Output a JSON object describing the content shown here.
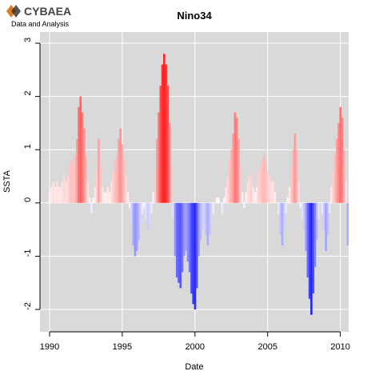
{
  "logo": {
    "name": "CYBAEA",
    "tagline": "Data and Analysis"
  },
  "chart_data": {
    "type": "bar",
    "title": "Nino34",
    "x_label": "Date",
    "y_label": "SSTA",
    "x": [
      1990,
      1990.125,
      1990.25,
      1990.375,
      1990.5,
      1990.625,
      1990.75,
      1990.875,
      1991,
      1991.125,
      1991.25,
      1991.375,
      1991.5,
      1991.625,
      1991.75,
      1991.875,
      1992,
      1992.125,
      1992.25,
      1992.375,
      1992.5,
      1992.625,
      1992.75,
      1992.875,
      1993,
      1993.125,
      1993.25,
      1993.375,
      1993.5,
      1993.625,
      1993.75,
      1993.875,
      1994,
      1994.125,
      1994.25,
      1994.375,
      1994.5,
      1994.625,
      1994.75,
      1994.875,
      1995,
      1995.125,
      1995.25,
      1995.375,
      1995.5,
      1995.625,
      1995.75,
      1995.875,
      1996,
      1996.125,
      1996.25,
      1996.375,
      1996.5,
      1996.625,
      1996.75,
      1996.875,
      1997,
      1997.125,
      1997.25,
      1997.375,
      1997.5,
      1997.625,
      1997.75,
      1997.875,
      1998,
      1998.125,
      1998.25,
      1998.375,
      1998.5,
      1998.625,
      1998.75,
      1998.875,
      1999,
      1999.125,
      1999.25,
      1999.375,
      1999.5,
      1999.625,
      1999.75,
      1999.875,
      2000,
      2000.125,
      2000.25,
      2000.375,
      2000.5,
      2000.625,
      2000.75,
      2000.875,
      2001,
      2001.125,
      2001.25,
      2001.375,
      2001.5,
      2001.625,
      2001.75,
      2001.875,
      2002,
      2002.125,
      2002.25,
      2002.375,
      2002.5,
      2002.625,
      2002.75,
      2002.875,
      2003,
      2003.125,
      2003.25,
      2003.375,
      2003.5,
      2003.625,
      2003.75,
      2003.875,
      2004,
      2004.125,
      2004.25,
      2004.375,
      2004.5,
      2004.625,
      2004.75,
      2004.875,
      2005,
      2005.125,
      2005.25,
      2005.375,
      2005.5,
      2005.625,
      2005.75,
      2005.875,
      2006,
      2006.125,
      2006.25,
      2006.375,
      2006.5,
      2006.625,
      2006.75,
      2006.875,
      2007,
      2007.125,
      2007.25,
      2007.375,
      2007.5,
      2007.625,
      2007.75,
      2007.875,
      2008,
      2008.125,
      2008.25,
      2008.375,
      2008.5,
      2008.625,
      2008.75,
      2008.875,
      2009,
      2009.125,
      2009.25,
      2009.375,
      2009.5,
      2009.625,
      2009.75,
      2009.875,
      2010,
      2010.125,
      2010.25,
      2010.375,
      2010.5
    ],
    "values": [
      0.2,
      0.3,
      0.4,
      0.3,
      0.4,
      0.3,
      0.3,
      0.4,
      0.5,
      0.4,
      0.5,
      0.7,
      0.8,
      0.7,
      0.9,
      1.2,
      1.8,
      2.0,
      1.7,
      1.4,
      0.9,
      0.4,
      0.1,
      -0.2,
      0.1,
      0.3,
      0.6,
      1.2,
      0.7,
      0.3,
      0.2,
      0.2,
      0.3,
      0.2,
      0.4,
      0.6,
      0.8,
      0.9,
      1.2,
      1.4,
      1.1,
      0.8,
      0.5,
      0.2,
      -0.1,
      -0.4,
      -0.8,
      -1.0,
      -0.9,
      -0.7,
      -0.4,
      -0.2,
      -0.1,
      -0.3,
      -0.5,
      -0.4,
      -0.2,
      0.2,
      0.6,
      1.2,
      1.7,
      2.2,
      2.6,
      2.8,
      2.6,
      2.2,
      1.5,
      0.7,
      -0.3,
      -1.0,
      -1.4,
      -1.5,
      -1.6,
      -1.3,
      -1.0,
      -0.9,
      -1.1,
      -1.3,
      -1.7,
      -1.9,
      -2.0,
      -1.6,
      -1.0,
      -0.7,
      -0.5,
      -0.4,
      -0.6,
      -0.8,
      -0.6,
      -0.4,
      -0.2,
      0.0,
      0.1,
      0.1,
      0.0,
      -0.2,
      0.1,
      0.3,
      0.5,
      0.8,
      1.0,
      1.3,
      1.7,
      1.6,
      1.2,
      0.7,
      0.2,
      -0.1,
      0.2,
      0.4,
      0.5,
      0.6,
      0.3,
      0.2,
      0.3,
      0.6,
      0.7,
      0.8,
      0.9,
      0.8,
      0.6,
      0.5,
      0.4,
      0.4,
      0.2,
      0.0,
      -0.2,
      -0.6,
      -0.8,
      -0.5,
      -0.2,
      0.1,
      0.3,
      0.7,
      1.0,
      1.3,
      1.0,
      0.4,
      -0.1,
      -0.3,
      -0.5,
      -0.9,
      -1.4,
      -1.8,
      -2.1,
      -1.7,
      -1.2,
      -0.7,
      -0.3,
      0.0,
      -0.2,
      -0.5,
      -0.9,
      -0.6,
      -0.2,
      0.3,
      0.6,
      0.9,
      1.2,
      1.5,
      1.8,
      1.6,
      1.0,
      0.4,
      -0.8
    ],
    "colors": {
      "positive": "#ff0000",
      "negative": "#0000ff"
    },
    "xlim": [
      1989.34,
      2010.57
    ],
    "ylim": [
      -2.42,
      3.21
    ],
    "xticks": [
      1990,
      1995,
      2000,
      2005,
      2010
    ],
    "yticks": [
      -2,
      -1,
      0,
      1,
      2,
      3
    ],
    "grid": true
  }
}
